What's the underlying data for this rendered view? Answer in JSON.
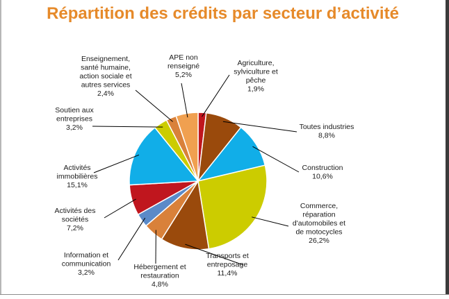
{
  "chart_data": {
    "type": "pie",
    "title": "Répartition des crédits par secteur d’activité",
    "slices": [
      {
        "label": [
          "Agriculture,",
          "sylviculture et",
          "pêche"
        ],
        "value_label": "1,9%",
        "value": 1.9,
        "color": "#c0161e"
      },
      {
        "label": [
          "Toutes industries"
        ],
        "value_label": "8,8%",
        "value": 8.8,
        "color": "#9a4a0c"
      },
      {
        "label": [
          "Construction"
        ],
        "value_label": "10,6%",
        "value": 10.6,
        "color": "#11aee8"
      },
      {
        "label": [
          "Commerce,",
          "réparation",
          "d'automobiles et",
          "de motocycles"
        ],
        "value_label": "26,2%",
        "value": 26.2,
        "color": "#cccc00"
      },
      {
        "label": [
          "Transports et",
          "entreposage"
        ],
        "value_label": "11,4%",
        "value": 11.4,
        "color": "#9a4a0c"
      },
      {
        "label": [
          "Hébergement et",
          "restauration"
        ],
        "value_label": "4,8%",
        "value": 4.8,
        "color": "#d9813a"
      },
      {
        "label": [
          "Information et",
          "communication"
        ],
        "value_label": "3,2%",
        "value": 3.2,
        "color": "#5b8ac8"
      },
      {
        "label": [
          "Activités des",
          "sociétés"
        ],
        "value_label": "7,2%",
        "value": 7.2,
        "color": "#c0161e"
      },
      {
        "label": [
          "Activités",
          "immobilières"
        ],
        "value_label": "15,1%",
        "value": 15.1,
        "color": "#11aee8"
      },
      {
        "label": [
          "Soutien aux",
          "entreprises"
        ],
        "value_label": "3,2%",
        "value": 3.2,
        "color": "#cccc00"
      },
      {
        "label": [
          "Enseignement,",
          "santé humaine,",
          "action sociale et",
          "autres services"
        ],
        "value_label": "2,4%",
        "value": 2.4,
        "color": "#d9813a"
      },
      {
        "label": [
          "APE non",
          "renseigné"
        ],
        "value_label": "5,2%",
        "value": 5.2,
        "color": "#f0a050"
      }
    ]
  }
}
